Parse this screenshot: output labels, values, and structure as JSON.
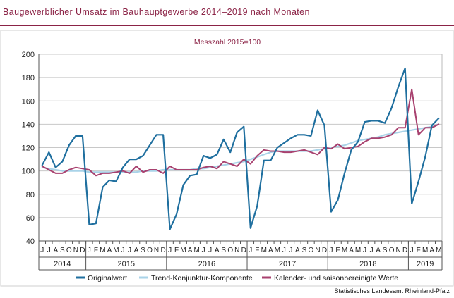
{
  "page": {
    "title": "Baugewerblicher Umsatz im Bauhauptgewerbe 2014–2019 nach Monaten",
    "source": "Statistisches Landesamt Rheinland-Pfalz"
  },
  "colors": {
    "title": "#8b2346",
    "original": "#1f6f9f",
    "trend": "#a9d3e8",
    "seasonal": "#a8416f",
    "grid": "#c8c8c8"
  },
  "chart_data": {
    "type": "line",
    "subtitle": "Messzahl 2015=100",
    "ylim": [
      40,
      200
    ],
    "yticks": [
      40,
      60,
      80,
      100,
      120,
      140,
      160,
      180,
      200
    ],
    "grid": true,
    "legend_position": "bottom",
    "month_labels": [
      "J",
      "J",
      "A",
      "S",
      "O",
      "N",
      "D",
      "J",
      "F",
      "M",
      "A",
      "M",
      "J",
      "J",
      "A",
      "S",
      "O",
      "N",
      "D",
      "J",
      "F",
      "M",
      "A",
      "M",
      "J",
      "J",
      "A",
      "S",
      "O",
      "N",
      "D",
      "J",
      "F",
      "M",
      "A",
      "M",
      "J",
      "J",
      "A",
      "S",
      "O",
      "N",
      "D",
      "J",
      "F",
      "M",
      "A",
      "M",
      "J",
      "J",
      "A",
      "S",
      "O",
      "N",
      "D",
      "J",
      "F",
      "M",
      "A",
      "M"
    ],
    "year_groups": [
      {
        "label": "2014",
        "start": 0,
        "end": 6
      },
      {
        "label": "2015",
        "start": 7,
        "end": 18
      },
      {
        "label": "2016",
        "start": 19,
        "end": 30
      },
      {
        "label": "2017",
        "start": 31,
        "end": 42
      },
      {
        "label": "2018",
        "start": 43,
        "end": 54
      },
      {
        "label": "2019",
        "start": 55,
        "end": 59
      }
    ],
    "series": [
      {
        "name": "Originalwert",
        "color": "#1f6f9f",
        "values": [
          105,
          116,
          103,
          108,
          122,
          130,
          130,
          54,
          55,
          86,
          92,
          91,
          103,
          110,
          110,
          113,
          122,
          131,
          131,
          50,
          63,
          88,
          96,
          97,
          113,
          111,
          114,
          127,
          116,
          133,
          138,
          51,
          70,
          109,
          109,
          120,
          124,
          128,
          131,
          131,
          130,
          152,
          139,
          65,
          75,
          98,
          118,
          125,
          142,
          143,
          143,
          141,
          154,
          172,
          188,
          72,
          91,
          112,
          139,
          145
        ]
      },
      {
        "name": "Trend-Konjunktur-Komponente",
        "color": "#a9d3e8",
        "values": [
          103,
          102,
          101,
          100,
          100,
          100,
          100,
          99,
          99,
          99,
          99,
          99,
          99,
          99,
          99,
          100,
          100,
          100,
          101,
          101,
          101,
          101,
          101,
          102,
          102,
          103,
          104,
          105,
          106,
          107,
          108,
          110,
          112,
          114,
          116,
          117,
          117,
          117,
          117,
          117,
          117,
          118,
          119,
          120,
          121,
          122,
          124,
          126,
          127,
          128,
          129,
          131,
          132,
          133,
          134,
          135,
          136,
          137,
          138,
          140
        ]
      },
      {
        "name": "Kalender- und saisonbereinigte Werte",
        "color": "#a8416f",
        "values": [
          104,
          101,
          98,
          98,
          101,
          103,
          102,
          101,
          96,
          98,
          98,
          99,
          100,
          98,
          104,
          99,
          101,
          101,
          98,
          104,
          101,
          101,
          101,
          101,
          103,
          104,
          102,
          108,
          106,
          104,
          110,
          106,
          113,
          118,
          117,
          117,
          116,
          116,
          117,
          118,
          116,
          114,
          120,
          119,
          123,
          119,
          120,
          121,
          125,
          128,
          128,
          129,
          131,
          137,
          137,
          170,
          131,
          137,
          137,
          140
        ]
      }
    ]
  }
}
